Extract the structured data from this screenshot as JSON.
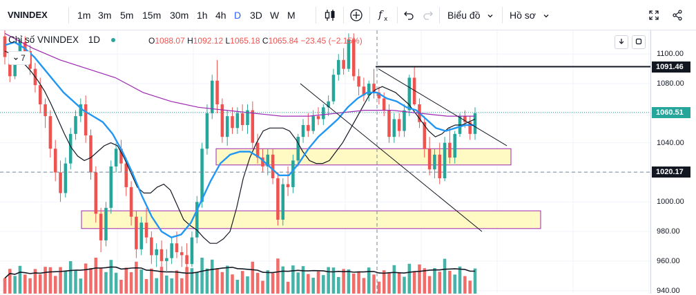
{
  "toolbar": {
    "symbol": "VNINDEX",
    "intervals": [
      "1m",
      "3m",
      "5m",
      "15m",
      "30m",
      "1h",
      "4h",
      "D",
      "3D",
      "W",
      "M"
    ],
    "active_interval": "D",
    "chart_type_label": "Biểu đồ",
    "profile_label": "Hồ sơ"
  },
  "legend": {
    "name": "Chỉ số VNINDEX",
    "interval": "1D",
    "open_label": "O",
    "open": "1088.07",
    "high_label": "H",
    "high": "1092.12",
    "low_label": "L",
    "low": "1065.18",
    "close_label": "C",
    "close": "1065.84",
    "change": "−23.45 (−2.15%)",
    "collapsed_count": "7"
  },
  "colors": {
    "up": "#26a69a",
    "down": "#ef5350",
    "ma_fast": "#131722",
    "ma_mid": "#2196f3",
    "ma_slow": "#9c27b0",
    "zone_fill": "#fff9c4",
    "zone_border": "#9c27b0"
  },
  "chart_data": {
    "type": "candlestick",
    "symbol": "VNINDEX",
    "interval": "1D",
    "y_axis": {
      "range": [
        938,
        1116
      ],
      "ticks": [
        1100,
        1080,
        1060,
        1040,
        1020,
        1000,
        980,
        960,
        940
      ],
      "tick_labels": [
        "1100.00",
        "1080.00",
        "1060.00",
        "1040.00",
        "1020.00",
        "1000.00",
        "980.00",
        "960.00",
        "940.00"
      ]
    },
    "price_tags": [
      {
        "name": "resistance-line-price",
        "value": 1091.46,
        "label": "1091.46",
        "color": "#131722"
      },
      {
        "name": "last-price",
        "value": 1060.51,
        "label": "1060.51",
        "color": "#26a69a"
      },
      {
        "name": "crosshair-price",
        "value": 1020.17,
        "label": "1020.17",
        "color": "#131722"
      }
    ],
    "candles_ohlc": [
      [
        1112,
        1116,
        1093,
        1098
      ],
      [
        1098,
        1102,
        1081,
        1085
      ],
      [
        1085,
        1100,
        1083,
        1096
      ],
      [
        1096,
        1110,
        1094,
        1108
      ],
      [
        1108,
        1112,
        1098,
        1102
      ],
      [
        1102,
        1106,
        1086,
        1090
      ],
      [
        1090,
        1094,
        1074,
        1079
      ],
      [
        1079,
        1084,
        1060,
        1066
      ],
      [
        1066,
        1070,
        1050,
        1058
      ],
      [
        1058,
        1062,
        1030,
        1036
      ],
      [
        1036,
        1042,
        1014,
        1020
      ],
      [
        1020,
        1028,
        1000,
        1006
      ],
      [
        1006,
        1030,
        1003,
        1026
      ],
      [
        1026,
        1050,
        1022,
        1046
      ],
      [
        1046,
        1062,
        1042,
        1058
      ],
      [
        1058,
        1070,
        1054,
        1066
      ],
      [
        1066,
        1072,
        1040,
        1045
      ],
      [
        1045,
        1049,
        1015,
        1020
      ],
      [
        1020,
        1024,
        986,
        992
      ],
      [
        992,
        996,
        966,
        974
      ],
      [
        974,
        1000,
        970,
        996
      ],
      [
        996,
        1028,
        992,
        1024
      ],
      [
        1024,
        1040,
        1020,
        1036
      ],
      [
        1036,
        1042,
        1020,
        1026
      ],
      [
        1026,
        1030,
        1004,
        1010
      ],
      [
        1010,
        1014,
        984,
        990
      ],
      [
        990,
        994,
        962,
        968
      ],
      [
        968,
        990,
        964,
        986
      ],
      [
        986,
        996,
        972,
        976
      ],
      [
        976,
        980,
        958,
        964
      ],
      [
        964,
        972,
        956,
        968
      ],
      [
        968,
        974,
        956,
        960
      ],
      [
        960,
        968,
        952,
        962
      ],
      [
        962,
        976,
        958,
        972
      ],
      [
        972,
        980,
        962,
        966
      ],
      [
        966,
        970,
        956,
        964
      ],
      [
        964,
        972,
        954,
        958
      ],
      [
        958,
        980,
        956,
        976
      ],
      [
        976,
        1004,
        972,
        1000
      ],
      [
        1000,
        1040,
        996,
        1036
      ],
      [
        1036,
        1066,
        1032,
        1060
      ],
      [
        1060,
        1086,
        1056,
        1082
      ],
      [
        1082,
        1096,
        1060,
        1066
      ],
      [
        1066,
        1070,
        1040,
        1044
      ],
      [
        1044,
        1062,
        1038,
        1058
      ],
      [
        1058,
        1064,
        1046,
        1050
      ],
      [
        1050,
        1064,
        1046,
        1060
      ],
      [
        1060,
        1066,
        1048,
        1052
      ],
      [
        1052,
        1066,
        1046,
        1062
      ],
      [
        1062,
        1068,
        1036,
        1040
      ],
      [
        1040,
        1046,
        1026,
        1030
      ],
      [
        1030,
        1036,
        1020,
        1024
      ],
      [
        1024,
        1036,
        1018,
        1032
      ],
      [
        1032,
        1036,
        1012,
        1016
      ],
      [
        1016,
        1020,
        984,
        988
      ],
      [
        988,
        1016,
        984,
        1012
      ],
      [
        1012,
        1024,
        1004,
        1010
      ],
      [
        1010,
        1032,
        1006,
        1028
      ],
      [
        1028,
        1046,
        1024,
        1044
      ],
      [
        1044,
        1056,
        1040,
        1052
      ],
      [
        1052,
        1060,
        1044,
        1048
      ],
      [
        1048,
        1062,
        1046,
        1058
      ],
      [
        1058,
        1064,
        1052,
        1056
      ],
      [
        1056,
        1066,
        1052,
        1064
      ],
      [
        1064,
        1072,
        1058,
        1068
      ],
      [
        1068,
        1090,
        1066,
        1086
      ],
      [
        1086,
        1100,
        1082,
        1096
      ],
      [
        1096,
        1104,
        1086,
        1090
      ],
      [
        1090,
        1114,
        1088,
        1110
      ],
      [
        1110,
        1114,
        1082,
        1085
      ],
      [
        1085,
        1090,
        1072,
        1078
      ],
      [
        1078,
        1084,
        1068,
        1072
      ],
      [
        1072,
        1082,
        1068,
        1080
      ],
      [
        1080,
        1090,
        1070,
        1074
      ],
      [
        1074,
        1078,
        1066,
        1070
      ],
      [
        1070,
        1074,
        1058,
        1062
      ],
      [
        1062,
        1066,
        1040,
        1044
      ],
      [
        1044,
        1060,
        1040,
        1056
      ],
      [
        1056,
        1060,
        1044,
        1048
      ],
      [
        1048,
        1066,
        1044,
        1062
      ],
      [
        1062,
        1086,
        1058,
        1084
      ],
      [
        1084,
        1092,
        1065,
        1066
      ],
      [
        1066,
        1070,
        1050,
        1054
      ],
      [
        1054,
        1058,
        1030,
        1036
      ],
      [
        1036,
        1044,
        1018,
        1022
      ],
      [
        1022,
        1036,
        1016,
        1032
      ],
      [
        1032,
        1040,
        1012,
        1016
      ],
      [
        1016,
        1044,
        1014,
        1040
      ],
      [
        1040,
        1050,
        1026,
        1030
      ],
      [
        1030,
        1048,
        1026,
        1046
      ],
      [
        1046,
        1060,
        1044,
        1058
      ],
      [
        1058,
        1062,
        1050,
        1054
      ],
      [
        1054,
        1058,
        1042,
        1046
      ],
      [
        1046,
        1064,
        1042,
        1060
      ]
    ],
    "moving_averages": [
      {
        "name": "MA fast",
        "color": "#131722",
        "values": [
          1102,
          1100,
          1097,
          1093,
          1088,
          1082,
          1075,
          1066,
          1056,
          1046,
          1037,
          1031,
          1028,
          1030,
          1034,
          1038,
          1040,
          1038,
          1030,
          1020,
          1010,
          1006,
          1006,
          1010,
          1012,
          1008,
          998,
          988,
          984,
          981,
          976,
          972,
          972,
          975,
          980,
          996,
          1016,
          1030,
          1040,
          1048,
          1050,
          1050,
          1050,
          1048,
          1042,
          1034,
          1028,
          1026,
          1026,
          1028,
          1034,
          1040,
          1048,
          1056,
          1064,
          1072,
          1076,
          1078,
          1076,
          1074,
          1070,
          1066,
          1060,
          1054,
          1048,
          1044,
          1046,
          1050,
          1052,
          1052,
          1054,
          1056
        ]
      },
      {
        "name": "MA mid",
        "color": "#2196f3",
        "values": [
          1106,
          1108,
          1104,
          1098,
          1090,
          1082,
          1074,
          1068,
          1062,
          1058,
          1054,
          1046,
          1034,
          1020,
          1004,
          990,
          980,
          976,
          978,
          986,
          1000,
          1014,
          1026,
          1032,
          1034,
          1034,
          1030,
          1024,
          1018,
          1018,
          1026,
          1036,
          1044,
          1050,
          1056,
          1064,
          1070,
          1074,
          1074,
          1070,
          1068,
          1064,
          1062,
          1056,
          1050,
          1048,
          1050,
          1052,
          1052
        ]
      },
      {
        "name": "MA slow",
        "color": "#9c27b0",
        "values": [
          1114,
          1104,
          1096,
          1090,
          1084,
          1074,
          1068,
          1064,
          1062,
          1060,
          1058,
          1058,
          1060,
          1062,
          1062,
          1060,
          1058,
          1058
        ]
      }
    ],
    "support_zones": [
      {
        "name": "upper-support-zone",
        "price_low": 1025,
        "price_high": 1036
      },
      {
        "name": "lower-support-zone",
        "price_low": 982,
        "price_high": 994
      }
    ],
    "horizontal_lines": [
      {
        "name": "resistance-line",
        "price": 1091.46
      }
    ],
    "trend_channel": [
      {
        "name": "channel-upper",
        "from_price": 1090,
        "to_price": 1038
      },
      {
        "name": "channel-lower",
        "from_price": 1080,
        "to_price": 980
      }
    ]
  }
}
